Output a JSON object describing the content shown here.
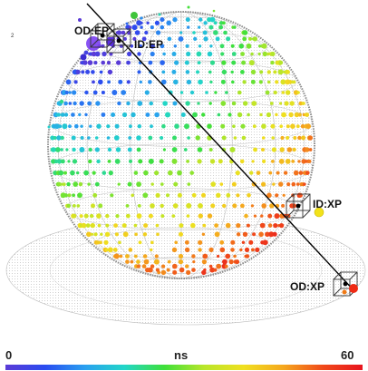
{
  "labels": {
    "od_entry": "OD:EP",
    "id_entry": "ID:EP",
    "id_exit": "ID:XP",
    "od_exit": "OD:XP"
  },
  "side_mark": "2",
  "scale": {
    "min_label": "0",
    "unit_label": "ns",
    "max_label": "60",
    "min": 0,
    "max": 60
  },
  "colors": {
    "colormap": [
      "#5b3bd6",
      "#2a4cf0",
      "#2aa0f0",
      "#22d6c8",
      "#3ee03a",
      "#b8e62a",
      "#f0e020",
      "#f5a81e",
      "#f04a1a",
      "#e8141e"
    ],
    "sphere_mesh": "#9a9a9a",
    "track_line": "#000000",
    "entry_marker": "#7b3ff2",
    "id_exit_marker": "#f2e21a",
    "od_exit_marker": "#ef2a14"
  }
}
